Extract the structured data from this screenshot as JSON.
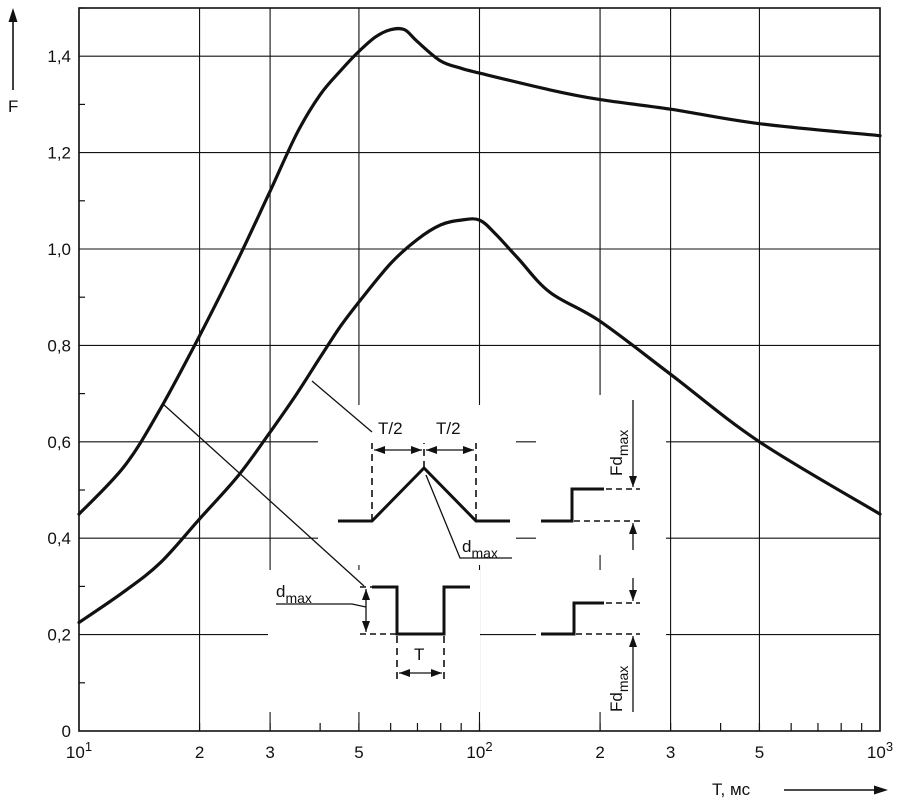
{
  "chart_data": {
    "type": "line",
    "title": "",
    "xlabel": "T, мс",
    "ylabel": "F",
    "x_scale": "log",
    "xlim": [
      10,
      1000
    ],
    "ylim": [
      0,
      1.5
    ],
    "grid": true,
    "y_ticks": [
      {
        "value": 0,
        "label": "0"
      },
      {
        "value": 0.2,
        "label": "0,2"
      },
      {
        "value": 0.4,
        "label": "0,4"
      },
      {
        "value": 0.6,
        "label": "0,6"
      },
      {
        "value": 0.8,
        "label": "0,8"
      },
      {
        "value": 1.0,
        "label": "1,0"
      },
      {
        "value": 1.2,
        "label": "1,2"
      },
      {
        "value": 1.4,
        "label": "1,4"
      }
    ],
    "x_ticks": [
      {
        "value": 10,
        "base": "10",
        "exp": "1"
      },
      {
        "value": 20,
        "label": "2"
      },
      {
        "value": 30,
        "label": "3"
      },
      {
        "value": 50,
        "label": "5"
      },
      {
        "value": 100,
        "base": "10",
        "exp": "2"
      },
      {
        "value": 200,
        "label": "2"
      },
      {
        "value": 300,
        "label": "3"
      },
      {
        "value": 500,
        "label": "5"
      },
      {
        "value": 1000,
        "base": "10",
        "exp": "3"
      }
    ],
    "series": [
      {
        "x": [
          10,
          13,
          16,
          20,
          25,
          30,
          35,
          40,
          45,
          50,
          55,
          60,
          65,
          70,
          80,
          90,
          100,
          150,
          200,
          300,
          500,
          1000
        ],
        "y": [
          0.45,
          0.55,
          0.67,
          0.82,
          0.98,
          1.12,
          1.24,
          1.32,
          1.37,
          1.41,
          1.44,
          1.455,
          1.455,
          1.43,
          1.39,
          1.375,
          1.365,
          1.33,
          1.31,
          1.29,
          1.26,
          1.235
        ]
      },
      {
        "x": [
          10,
          13,
          16,
          20,
          25,
          30,
          35,
          40,
          45,
          50,
          60,
          70,
          80,
          90,
          100,
          110,
          125,
          150,
          200,
          300,
          500,
          1000
        ],
        "y": [
          0.225,
          0.29,
          0.35,
          0.44,
          0.53,
          0.62,
          0.7,
          0.775,
          0.84,
          0.89,
          0.97,
          1.02,
          1.05,
          1.06,
          1.06,
          1.03,
          0.98,
          0.91,
          0.85,
          0.74,
          0.6,
          0.45
        ]
      }
    ],
    "annotations": {
      "half_period": "T/2",
      "period": "T",
      "dmax_base": "d",
      "dmax_sub": "max",
      "fdmax_base": "Fd",
      "fdmax_sub": "max"
    }
  }
}
